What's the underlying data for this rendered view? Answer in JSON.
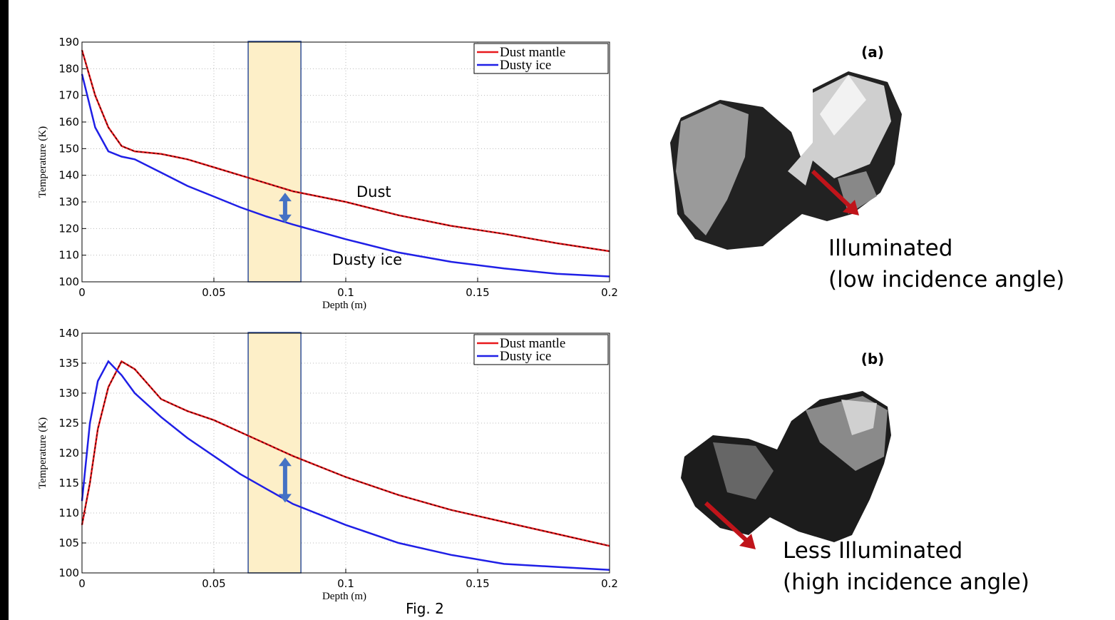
{
  "chart_data": [
    {
      "type": "line",
      "ylabel": "Temperature (K)",
      "xlabel": "Depth (m)",
      "x": [
        0,
        0.005,
        0.01,
        0.015,
        0.02,
        0.03,
        0.04,
        0.05,
        0.06,
        0.07,
        0.08,
        0.1,
        0.12,
        0.14,
        0.16,
        0.18,
        0.2
      ],
      "series": [
        {
          "name": "Dust mantle",
          "color": "#e8191c",
          "values": [
            187,
            170,
            158,
            151,
            149,
            148,
            146,
            143,
            140,
            137,
            134,
            130,
            125,
            121,
            118,
            114.5,
            111.5
          ]
        },
        {
          "name": "Dusty ice",
          "color": "#1f1fe6",
          "values": [
            178,
            158,
            149,
            147,
            146,
            141,
            136,
            132,
            128,
            124.5,
            121.5,
            116,
            111,
            107.5,
            105,
            103,
            102
          ]
        }
      ],
      "xlim": [
        0,
        0.2
      ],
      "ylim": [
        100,
        190
      ],
      "xticks": [
        0,
        0.05,
        0.1,
        0.15,
        0.2
      ],
      "yticks": [
        100,
        110,
        120,
        130,
        140,
        150,
        160,
        170,
        180,
        190
      ],
      "grid": true,
      "legend": "upper right",
      "highlight_x": [
        0.063,
        0.083
      ],
      "annotations": [
        "Dust",
        "Dusty ice"
      ]
    },
    {
      "type": "line",
      "ylabel": "Temperature (K)",
      "xlabel": "Depth (m)",
      "x": [
        0,
        0.003,
        0.006,
        0.01,
        0.015,
        0.02,
        0.03,
        0.04,
        0.05,
        0.06,
        0.07,
        0.08,
        0.1,
        0.12,
        0.14,
        0.16,
        0.18,
        0.2
      ],
      "series": [
        {
          "name": "Dust mantle",
          "color": "#e8191c",
          "values": [
            108,
            115,
            124,
            131,
            135.3,
            134,
            129,
            127,
            125.5,
            123.5,
            121.5,
            119.5,
            116,
            113,
            110.5,
            108.5,
            106.5,
            104.5
          ]
        },
        {
          "name": "Dusty ice",
          "color": "#1f1fe6",
          "values": [
            112,
            125,
            132,
            135.3,
            133,
            130,
            126,
            122.5,
            119.5,
            116.5,
            114,
            111.5,
            108,
            105,
            103,
            101.5,
            101,
            100.5
          ]
        }
      ],
      "xlim": [
        0,
        0.2
      ],
      "ylim": [
        100,
        140
      ],
      "xticks": [
        0,
        0.05,
        0.1,
        0.15,
        0.2
      ],
      "yticks": [
        100,
        105,
        110,
        115,
        120,
        125,
        130,
        135,
        140
      ],
      "grid": true,
      "legend": "upper right",
      "highlight_x": [
        0.063,
        0.083
      ],
      "annotations": []
    }
  ],
  "panels": [
    {
      "label": "(a)",
      "caption": [
        "Illuminated",
        "(low incidence angle)"
      ]
    },
    {
      "label": "(b)",
      "caption": [
        "Less Illuminated",
        "(high incidence angle)"
      ]
    }
  ],
  "figure_label": "Fig.  2"
}
